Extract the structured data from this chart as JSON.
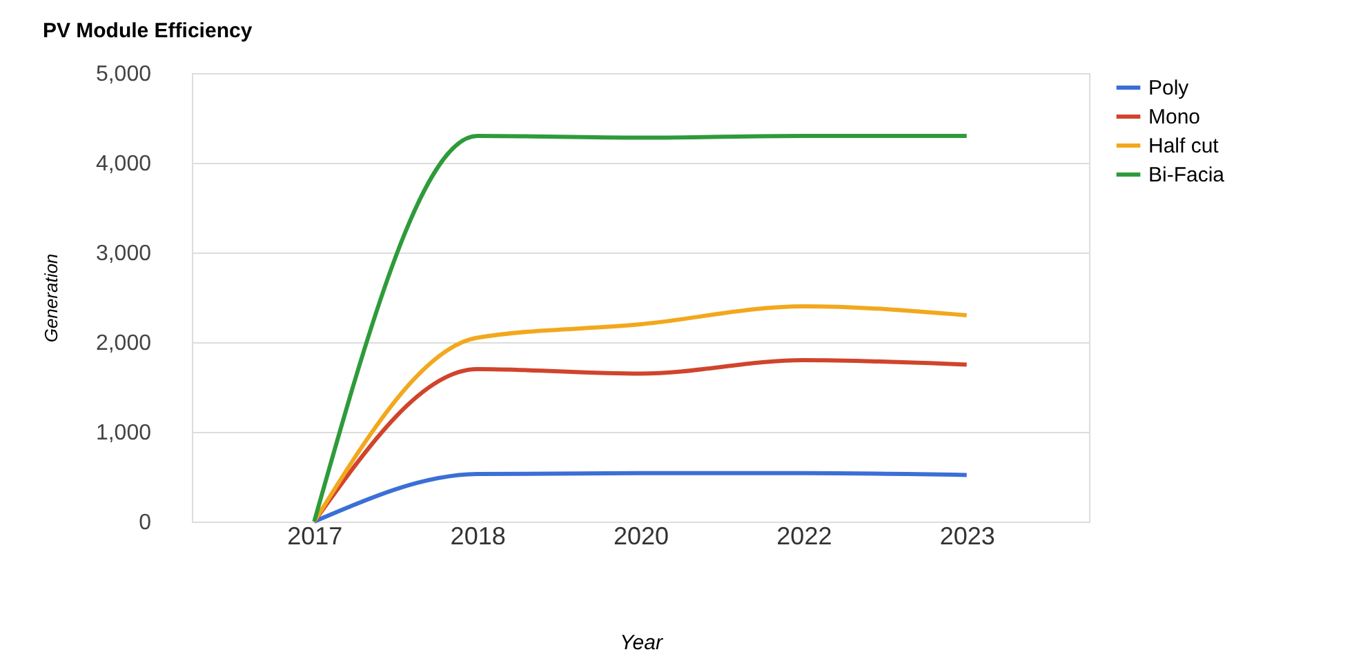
{
  "chart_data": {
    "type": "line",
    "title": "PV Module Efficiency",
    "xlabel": "Year",
    "ylabel": "Generation",
    "categories": [
      "2017",
      "2018",
      "2020",
      "2022",
      "2023"
    ],
    "series": [
      {
        "name": "Poly",
        "color": "#3b6fd6",
        "values": [
          0,
          530,
          540,
          540,
          520
        ]
      },
      {
        "name": "Mono",
        "color": "#d0442c",
        "values": [
          0,
          1700,
          1650,
          1800,
          1750
        ]
      },
      {
        "name": "Half cut",
        "color": "#f2a81d",
        "values": [
          0,
          2050,
          2200,
          2400,
          2300
        ]
      },
      {
        "name": "Bi-Facia",
        "color": "#2e9b3a",
        "values": [
          0,
          4300,
          4280,
          4300,
          4300
        ]
      }
    ],
    "ylim": [
      0,
      5000
    ],
    "yticks": [
      {
        "value": 0,
        "label": "0"
      },
      {
        "value": 1000,
        "label": "1,000"
      },
      {
        "value": 2000,
        "label": "2,000"
      },
      {
        "value": 3000,
        "label": "3,000"
      },
      {
        "value": 4000,
        "label": "4,000"
      },
      {
        "value": 5000,
        "label": "5,000"
      }
    ],
    "grid": "y",
    "legend": "right",
    "marker": "none",
    "line_style": "solid"
  }
}
